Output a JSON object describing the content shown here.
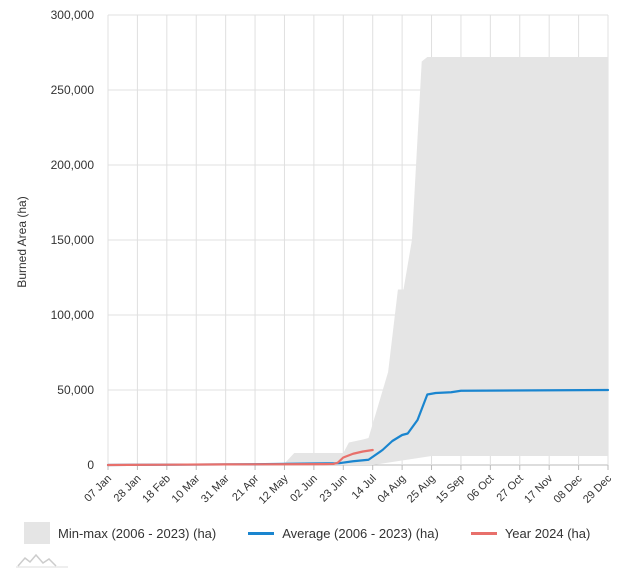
{
  "chart_data": {
    "type": "area",
    "title": "",
    "xlabel": "",
    "ylabel": "Burned Area (ha)",
    "ylim": [
      0,
      300000
    ],
    "y_ticks": [
      "0",
      "50,000",
      "100,000",
      "150,000",
      "200,000",
      "250,000",
      "300,000"
    ],
    "x_range": [
      0,
      357
    ],
    "x_ticks": [
      {
        "day": 0,
        "label": "07 Jan"
      },
      {
        "day": 21,
        "label": "28 Jan"
      },
      {
        "day": 42,
        "label": "18 Feb"
      },
      {
        "day": 63,
        "label": "10 Mar"
      },
      {
        "day": 84,
        "label": "31 Mar"
      },
      {
        "day": 105,
        "label": "21 Apr"
      },
      {
        "day": 126,
        "label": "12 May"
      },
      {
        "day": 147,
        "label": "02 Jun"
      },
      {
        "day": 168,
        "label": "23 Jun"
      },
      {
        "day": 189,
        "label": "14 Jul"
      },
      {
        "day": 210,
        "label": "04 Aug"
      },
      {
        "day": 231,
        "label": "25 Aug"
      },
      {
        "day": 252,
        "label": "15 Sep"
      },
      {
        "day": 273,
        "label": "06 Oct"
      },
      {
        "day": 294,
        "label": "27 Oct"
      },
      {
        "day": 315,
        "label": "17 Nov"
      },
      {
        "day": 336,
        "label": "08 Dec"
      },
      {
        "day": 357,
        "label": "29 Dec"
      }
    ],
    "series": [
      {
        "name": "Min-max (2006 - 2023) (ha)",
        "kind": "band",
        "color": "#e5e5e5",
        "upper": [
          [
            0,
            0
          ],
          [
            63,
            0
          ],
          [
            70,
            500
          ],
          [
            105,
            800
          ],
          [
            126,
            1000
          ],
          [
            133,
            8000
          ],
          [
            161,
            8000
          ],
          [
            168,
            8000
          ],
          [
            172,
            15000
          ],
          [
            182,
            17000
          ],
          [
            186,
            18000
          ],
          [
            193,
            40000
          ],
          [
            200,
            62000
          ],
          [
            207,
            117000
          ],
          [
            211,
            117000
          ],
          [
            217,
            150000
          ],
          [
            224,
            269000
          ],
          [
            228,
            272000
          ],
          [
            357,
            272000
          ]
        ],
        "lower": [
          [
            0,
            0
          ],
          [
            189,
            0
          ],
          [
            196,
            1000
          ],
          [
            203,
            2000
          ],
          [
            217,
            4000
          ],
          [
            224,
            5000
          ],
          [
            231,
            6000
          ],
          [
            357,
            6000
          ]
        ]
      },
      {
        "name": "Average (2006 - 2023) (ha)",
        "kind": "line",
        "color": "#1a85cf",
        "points": [
          [
            0,
            0
          ],
          [
            63,
            300
          ],
          [
            105,
            500
          ],
          [
            126,
            800
          ],
          [
            147,
            1000
          ],
          [
            165,
            1200
          ],
          [
            175,
            2500
          ],
          [
            186,
            3500
          ],
          [
            196,
            10000
          ],
          [
            203,
            16000
          ],
          [
            210,
            20000
          ],
          [
            214,
            21000
          ],
          [
            221,
            30000
          ],
          [
            228,
            47000
          ],
          [
            234,
            48000
          ],
          [
            245,
            48500
          ],
          [
            252,
            49500
          ],
          [
            357,
            50000
          ]
        ]
      },
      {
        "name": "Year 2024 (ha)",
        "kind": "line",
        "color": "#e8706b",
        "points": [
          [
            0,
            0
          ],
          [
            42,
            200
          ],
          [
            84,
            400
          ],
          [
            126,
            500
          ],
          [
            154,
            600
          ],
          [
            161,
            700
          ],
          [
            164,
            1500
          ],
          [
            168,
            5000
          ],
          [
            175,
            7500
          ],
          [
            182,
            9000
          ],
          [
            189,
            10000
          ]
        ]
      }
    ]
  },
  "legend": {
    "band_label": "Min-max (2006 - 2023) (ha)",
    "average_label": "Average (2006 - 2023) (ha)",
    "year_label": "Year 2024 (ha)",
    "band_color": "#e5e5e5",
    "average_color": "#1a85cf",
    "year_color": "#e8706b"
  }
}
